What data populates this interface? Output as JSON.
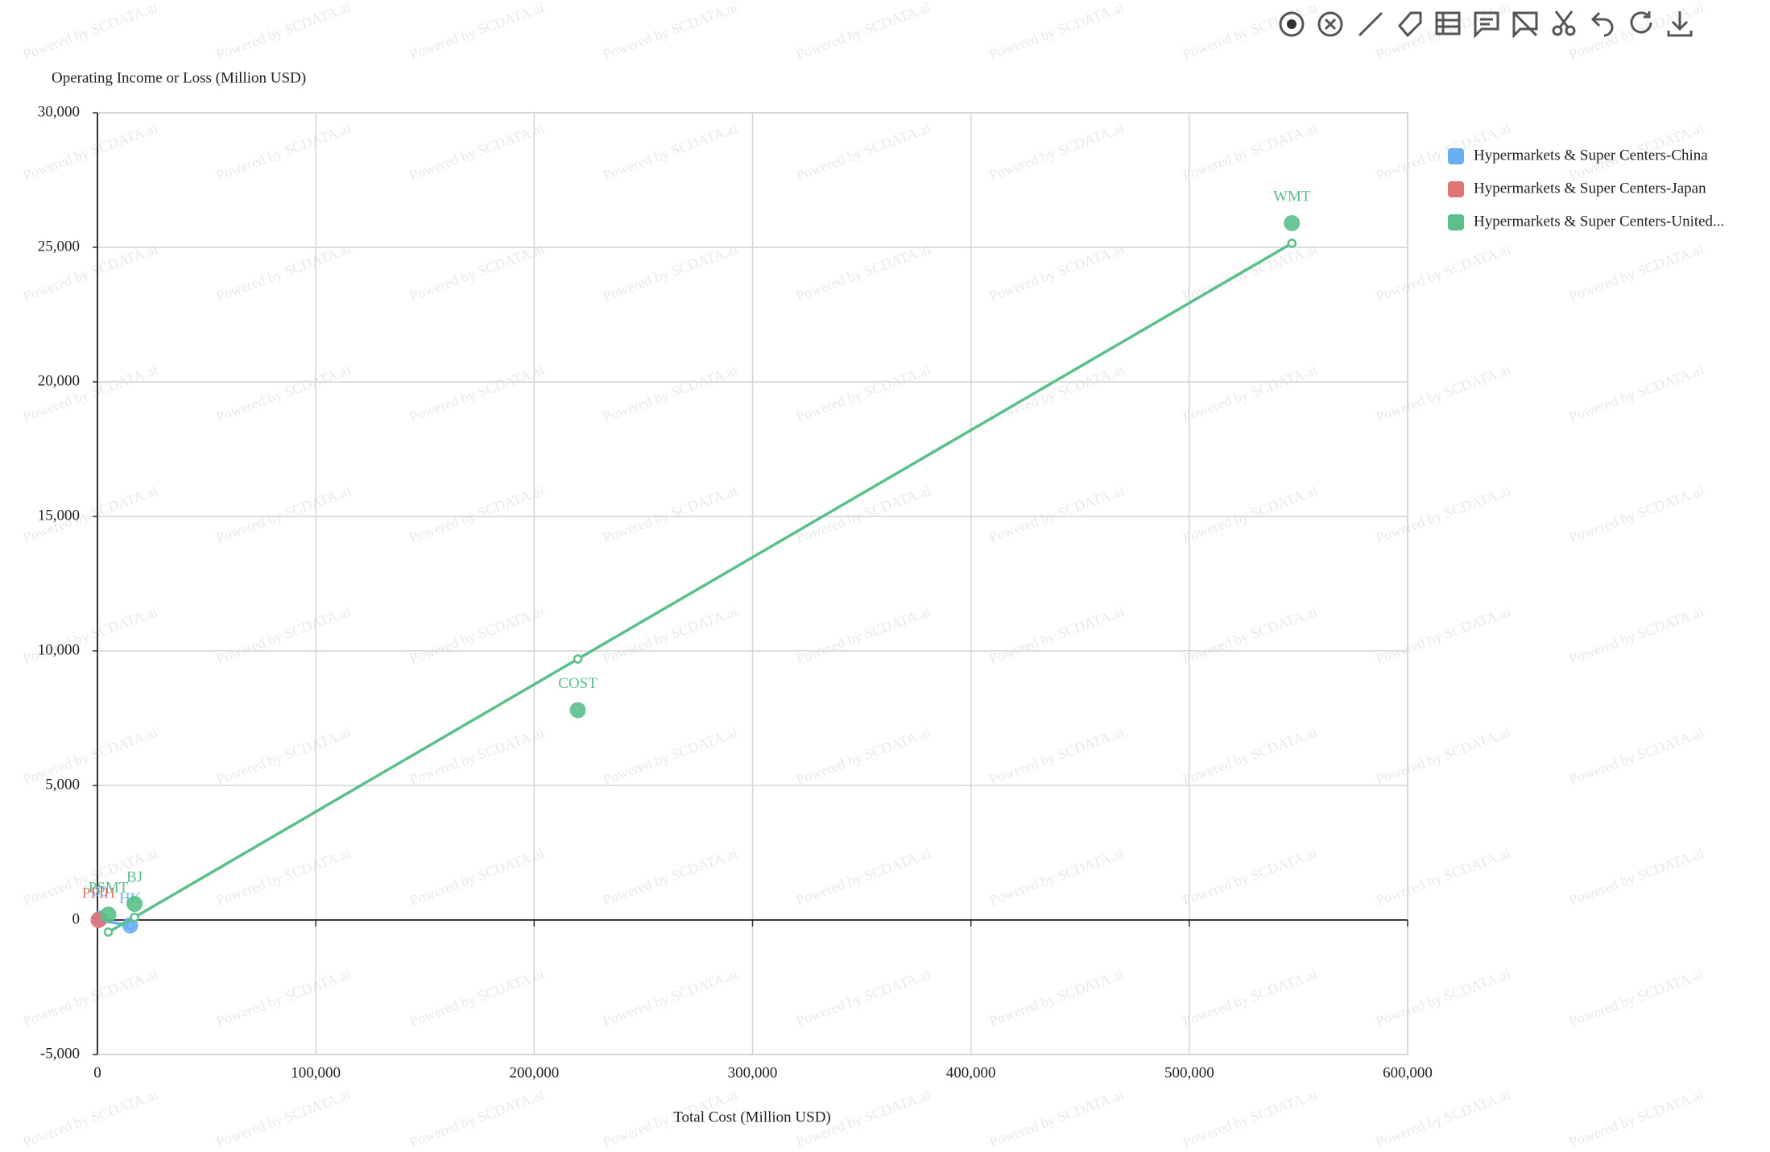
{
  "chart_data": {
    "type": "scatter",
    "watermark": "Powered by SCDATA.ai",
    "y_axis_title": "Operating Income or Loss (Million USD)",
    "x_axis_title": "Total Cost (Million USD)",
    "xlim": [
      0,
      600000
    ],
    "xticks": [
      0,
      {
        "value": 100000,
        "label": "100,000"
      },
      {
        "value": 200000,
        "label": "200,000"
      },
      {
        "value": 300000,
        "label": "300,000"
      },
      {
        "value": 400000,
        "label": "400,000"
      },
      {
        "value": 500000,
        "label": "500,000"
      },
      {
        "value": 600000,
        "label": "600,000"
      }
    ],
    "ylim": [
      -5000,
      30000
    ],
    "yticks": [
      {
        "value": -5000,
        "label": "-5,000"
      },
      0,
      {
        "value": 5000,
        "label": "5,000"
      },
      {
        "value": 10000,
        "label": "10,000"
      },
      {
        "value": 15000,
        "label": "15,000"
      },
      {
        "value": 20000,
        "label": "20,000"
      },
      {
        "value": 25000,
        "label": "25,000"
      },
      {
        "value": 30000,
        "label": "30,000"
      }
    ],
    "grid": true,
    "legend_position": "right",
    "series": [
      {
        "name": "Hypermarkets & Super Centers-China",
        "color": "#6aaef5",
        "x": [
          1200,
          15000
        ],
        "y": [
          50,
          -200
        ],
        "labels": [
          "00",
          "HK"
        ],
        "trend_x": [
          0,
          15000
        ],
        "trend_y": [
          0,
          -200
        ]
      },
      {
        "name": "Hypermarkets & Super Centers-Japan",
        "color": "#e07676",
        "x": [
          500
        ],
        "y": [
          0
        ],
        "labels": [
          "PPIH"
        ],
        "trend_x": [],
        "trend_y": []
      },
      {
        "name": "Hypermarkets & Super Centers-United...",
        "color": "#5bbf8a",
        "x": [
          547000,
          220000,
          17000,
          5000
        ],
        "y": [
          25900,
          7800,
          600,
          200
        ],
        "labels": [
          "WMT",
          "COST",
          "BJ",
          "PSMT"
        ],
        "trend_x": [
          5000,
          17000,
          220000,
          547000
        ],
        "trend_y": [
          -450,
          100,
          9700,
          25150
        ]
      }
    ]
  }
}
